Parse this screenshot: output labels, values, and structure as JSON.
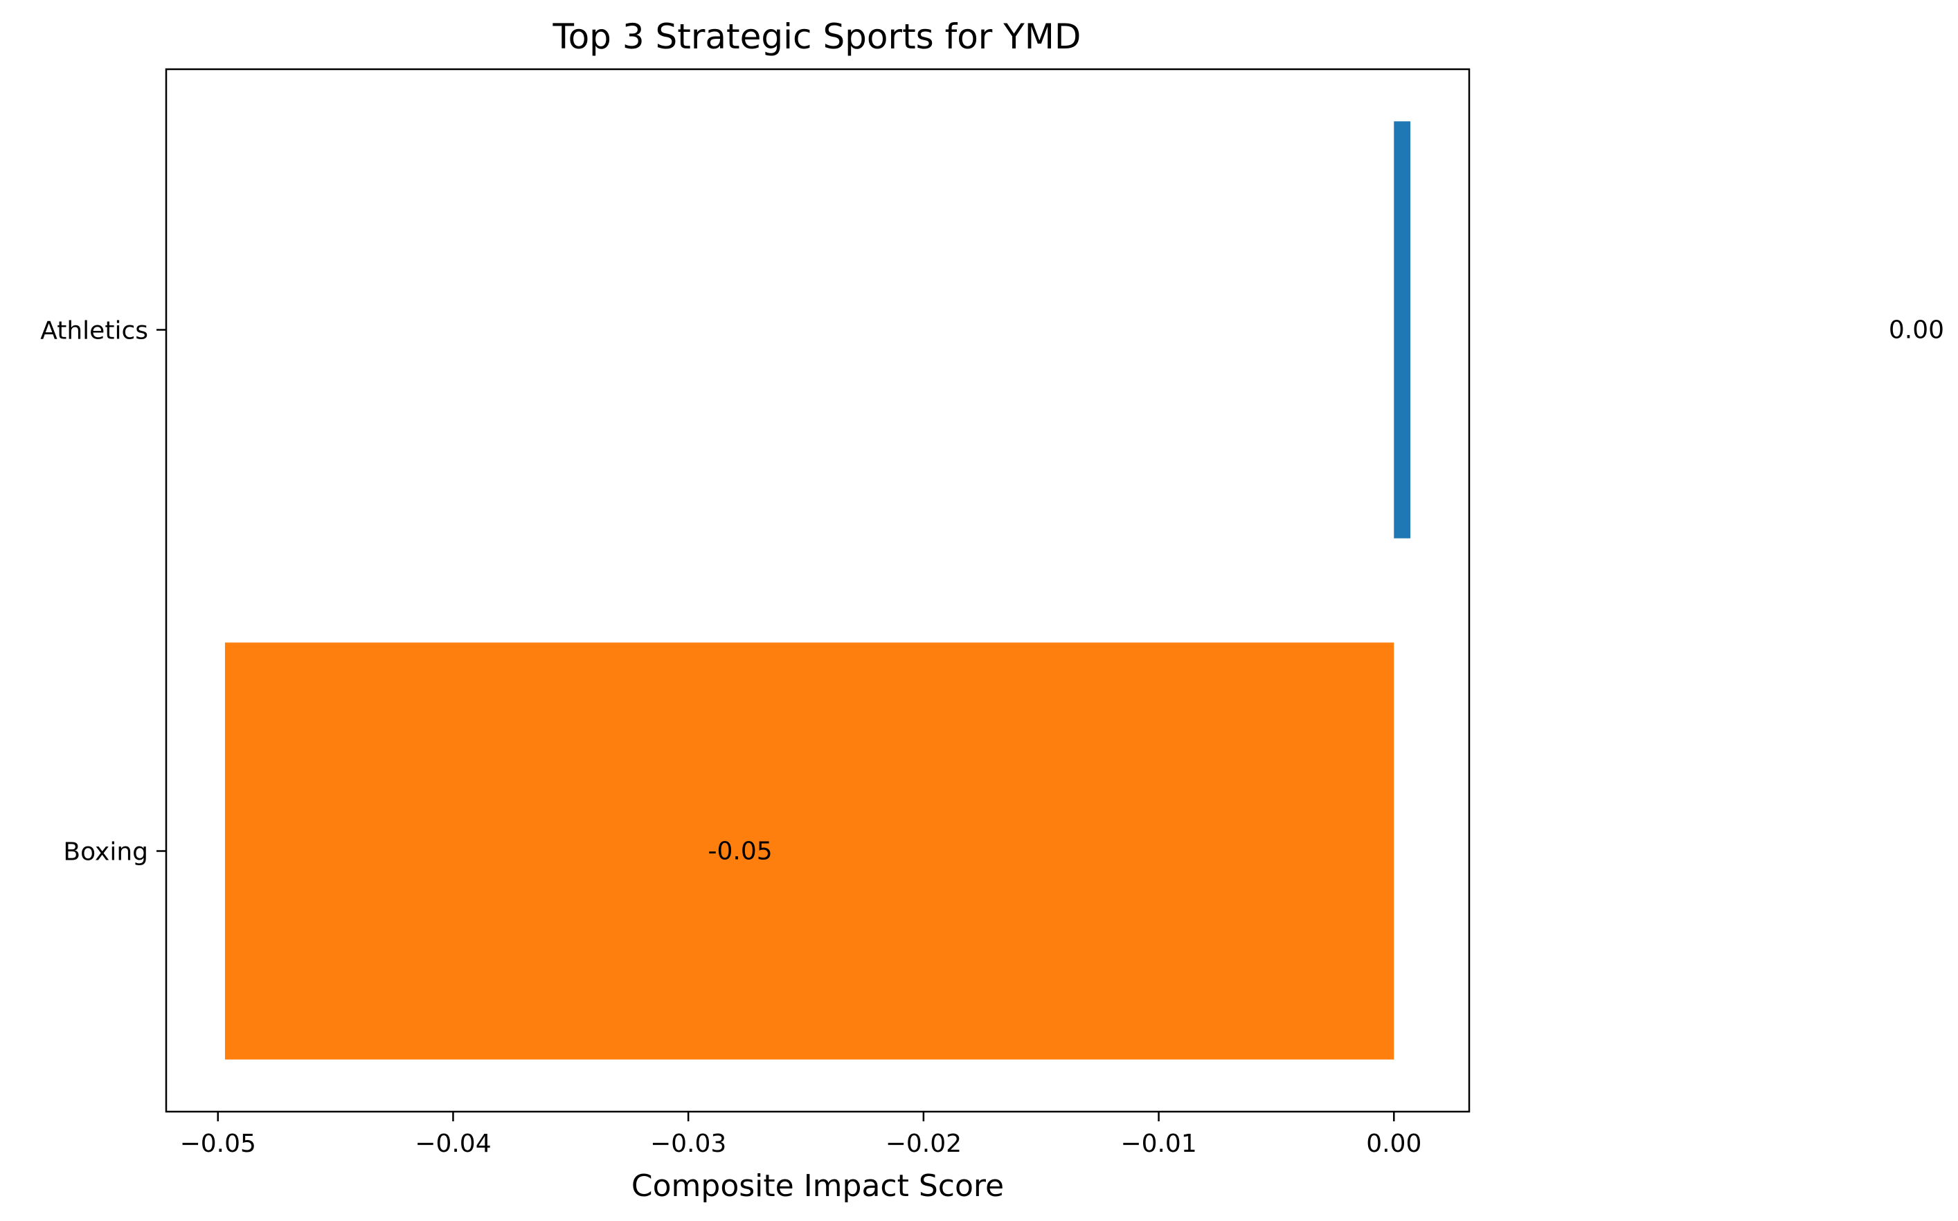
{
  "chart_data": {
    "type": "bar",
    "orientation": "horizontal",
    "title": "Top 3 Strategic Sports for YMD",
    "xlabel": "Composite Impact Score",
    "ylabel": "",
    "categories": [
      "Athletics",
      "Boxing"
    ],
    "values": [
      0.0007,
      -0.0497
    ],
    "data_labels": [
      "0.00",
      "-0.05"
    ],
    "colors": [
      "#1f77b4",
      "#ff7f0e"
    ],
    "xlim": [
      -0.0522,
      0.0032
    ],
    "xticks": [
      -0.05,
      -0.04,
      -0.03,
      -0.02,
      -0.01,
      0.0
    ],
    "xtick_labels": [
      "−0.05",
      "−0.04",
      "−0.03",
      "−0.02",
      "−0.01",
      "0.00"
    ],
    "grid": false,
    "legend": "none"
  }
}
